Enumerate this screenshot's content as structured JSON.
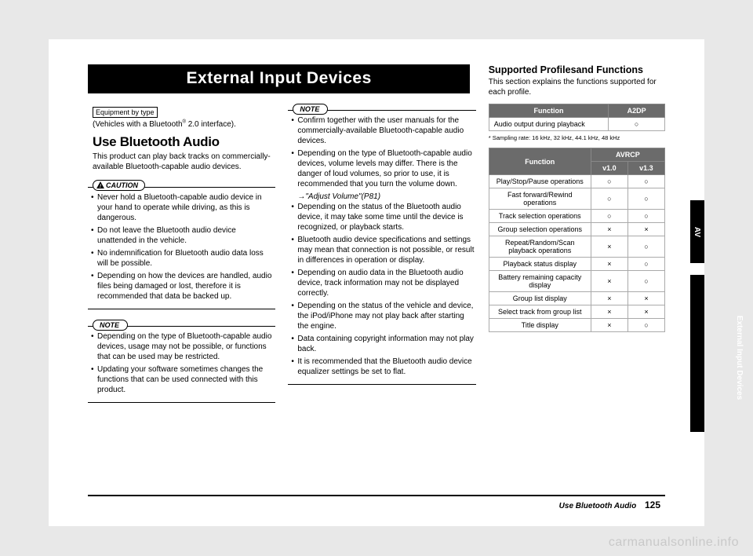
{
  "banner_title": "External Input Devices",
  "equipment_label": "Equipment by type",
  "vehicles_text_pre": "(Vehicles with a Bluetooth",
  "vehicles_text_sup": "®",
  "vehicles_text_post": " 2.0 interface).",
  "section_use_bt": "Use Bluetooth Audio",
  "intro_text": "This product can play back tracks on commercially-available Bluetooth-capable audio devices.",
  "caution_label": "CAUTION",
  "note_label": "NOTE",
  "caution_items": [
    "Never hold a Bluetooth-capable audio device in your hand to operate while driving, as this is dangerous.",
    "Do not leave the Bluetooth audio device unattended in the vehicle.",
    "No indemnification for Bluetooth audio data loss will be possible.",
    "Depending on how the devices are handled, audio files being damaged or lost, therefore it is recommended that data be backed up."
  ],
  "note1_items": [
    "Depending on the type of Bluetooth-capable audio devices, usage may not be possible, or functions that can be used may be restricted.",
    "Updating your software sometimes changes the functions that can be used connected with this product."
  ],
  "note2_items": [
    "Confirm together with the user manuals for the commercially-available Bluetooth-capable audio devices.",
    "Depending on the type of Bluetooth-capable audio devices, volume levels may differ. There is the danger of loud volumes, so prior to use, it is recommended that you turn the volume down.",
    "__REF__→\"Adjust Volume\"(P81)",
    "Depending on the status of the Bluetooth audio device, it may take some time until the device is recognized, or playback starts.",
    "Bluetooth audio device specifications and settings may mean that connection is not possible, or result in differences in operation or display.",
    "Depending on audio data in the Bluetooth audio device, track information may not be displayed correctly.",
    "Depending on the status of the vehicle and device, the iPod/iPhone may not play back after starting the engine.",
    "Data containing copyright information may not play back.",
    "It is recommended that the Bluetooth audio device equalizer settings be set to flat."
  ],
  "supported_heading": "Supported Profilesand Functions",
  "supported_text": "This section explains the functions supported for each profile.",
  "table1": {
    "headers": [
      "Function",
      "A2DP"
    ],
    "rows": [
      [
        "Audio output during playback",
        "○"
      ]
    ]
  },
  "sampling_note": "* Sampling rate: 16 kHz, 32 kHz, 44.1 kHz, 48 kHz",
  "table2": {
    "headers": [
      "Function",
      "AVRCP"
    ],
    "subheaders": [
      "v1.0",
      "v1.3"
    ],
    "rows": [
      [
        "Play/Stop/Pause operations",
        "○",
        "○"
      ],
      [
        "Fast forward/Rewind operations",
        "○",
        "○"
      ],
      [
        "Track selection operations",
        "○",
        "○"
      ],
      [
        "Group selection operations",
        "×",
        "×"
      ],
      [
        "Repeat/Random/Scan playback operations",
        "×",
        "○"
      ],
      [
        "Playback status display",
        "×",
        "○"
      ],
      [
        "Battery remaining capacity display",
        "×",
        "○"
      ],
      [
        "Group list display",
        "×",
        "×"
      ],
      [
        "Select track from group list",
        "×",
        "×"
      ],
      [
        "Title display",
        "×",
        "○"
      ]
    ]
  },
  "tab_av": "AV",
  "tab_ext": "External Input Devices",
  "footer_title": "Use Bluetooth Audio",
  "page_number": "125",
  "watermark": "carmanualsonline.info"
}
